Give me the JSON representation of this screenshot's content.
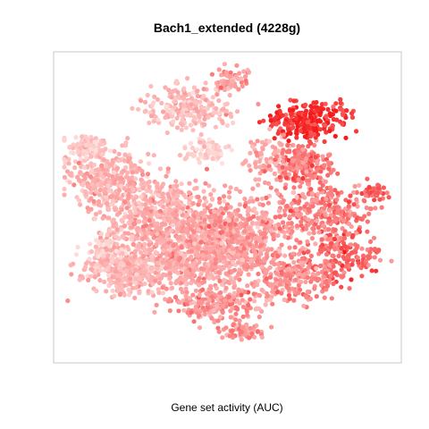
{
  "chart_data": {
    "type": "scatter",
    "title": "Bach1_extended (4228g)",
    "xlabel": "Gene set activity (AUC)",
    "ylabel": "",
    "n_points": 4228,
    "axes": false,
    "grid": false,
    "legend": "none",
    "colors": {
      "low": "#fde0dd",
      "mid": "#fc9a9a",
      "high": "#f51b1b",
      "frame": "#c8c8c8"
    },
    "color_encoding": "AUC (low = pale pink, high = saturated red)"
  }
}
